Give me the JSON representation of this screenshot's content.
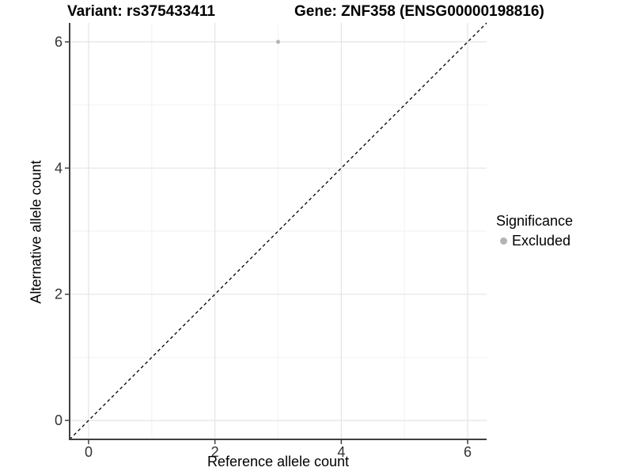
{
  "chart_data": {
    "type": "scatter",
    "titles": {
      "left": "Variant: rs375433411",
      "right": "Gene: ZNF358 (ENSG00000198816)"
    },
    "xlabel": "Reference allele count",
    "ylabel": "Alternative allele count",
    "xlim": [
      -0.3,
      6.3
    ],
    "ylim": [
      -0.3,
      6.3
    ],
    "x_ticks": [
      0,
      2,
      4,
      6
    ],
    "y_ticks": [
      0,
      2,
      4,
      6
    ],
    "x_minor_gridlines": [
      1,
      3,
      5
    ],
    "y_minor_gridlines": [
      1,
      3,
      5
    ],
    "grid": "major+minor",
    "series": [
      {
        "name": "Excluded",
        "marker": "circle",
        "color": "#b4b4b4",
        "points": [
          [
            3,
            6
          ]
        ]
      }
    ],
    "reference_line": {
      "description": "identity line y=x",
      "style": "dashed",
      "color": "#000000",
      "x1": -0.3,
      "y1": -0.3,
      "x2": 6.3,
      "y2": 6.3
    },
    "legend": {
      "position": "right",
      "title": "Significance",
      "items": [
        {
          "label": "Excluded",
          "marker": "circle",
          "color": "#b4b4b4"
        }
      ]
    },
    "colors": {
      "background": "#ffffff",
      "grid_major": "#e4e4e4",
      "grid_minor": "#f2f2f2",
      "axis_line": "#404040",
      "tick_label": "#333333",
      "text": "#000000"
    }
  }
}
